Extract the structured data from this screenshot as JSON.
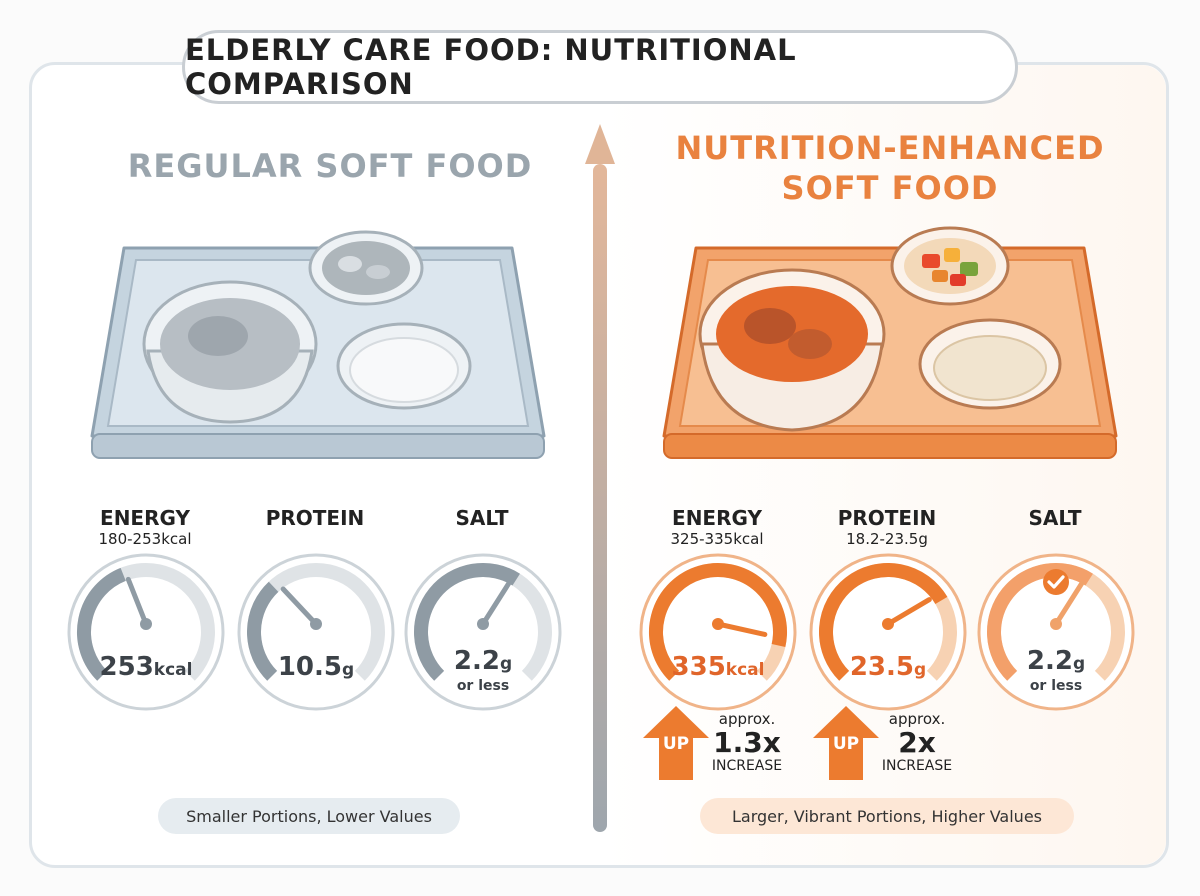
{
  "title": "ELDERLY CARE FOOD: NUTRITIONAL COMPARISON",
  "regular": {
    "heading": "REGULAR SOFT FOOD",
    "caption": "Smaller Portions, Lower Values",
    "metrics": {
      "energy": {
        "label": "ENERGY",
        "range": "180-253kcal",
        "value": "253",
        "unit": "kcal",
        "level": 0.42
      },
      "protein": {
        "label": "PROTEIN",
        "value": "10.5",
        "unit": "g",
        "level": 0.34
      },
      "salt": {
        "label": "SALT",
        "value": "2.2",
        "unit": "g",
        "sub": "or less",
        "level": 0.62
      }
    }
  },
  "enhanced": {
    "heading_line1": "NUTRITION-ENHANCED",
    "heading_line2": "SOFT FOOD",
    "caption": "Larger, Vibrant Portions, Higher Values",
    "metrics": {
      "energy": {
        "label": "ENERGY",
        "range": "325-335kcal",
        "value": "335",
        "unit": "kcal",
        "level": 0.88
      },
      "protein": {
        "label": "PROTEIN",
        "range": "18.2-23.5g",
        "value": "23.5",
        "unit": "g",
        "level": 0.72
      },
      "salt": {
        "label": "SALT",
        "value": "2.2",
        "unit": "g",
        "sub": "or less",
        "level": 0.62
      }
    },
    "increases": {
      "energy": {
        "badge": "UP",
        "approx": "approx.",
        "multiplier": "1.3x",
        "text": "INCREASE"
      },
      "protein": {
        "badge": "UP",
        "approx": "approx.",
        "multiplier": "2x",
        "text": "INCREASE"
      }
    }
  },
  "colors": {
    "regular_accent": "#8f9ba4",
    "regular_track": "#dfe3e6",
    "enhanced_accent": "#ec7b2f",
    "enhanced_track": "#f7d2b3",
    "enhanced_heading": "#e9823f"
  },
  "icons": {
    "salt_ok": "check-circle-icon",
    "increase": "up-arrow-icon"
  }
}
